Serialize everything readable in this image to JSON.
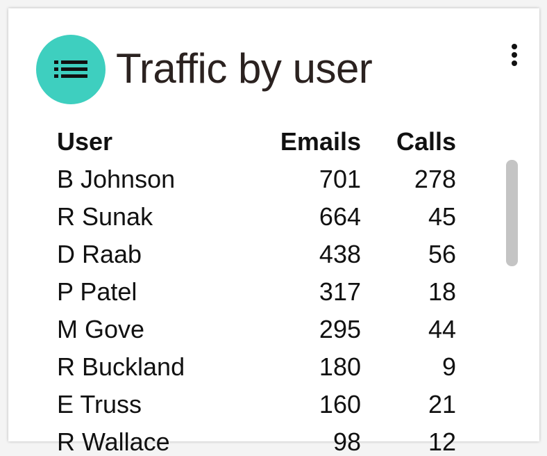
{
  "header": {
    "title": "Traffic by user"
  },
  "table": {
    "columns": [
      "User",
      "Emails",
      "Calls"
    ],
    "rows": [
      [
        "B Johnson",
        701,
        278
      ],
      [
        "R Sunak",
        664,
        45
      ],
      [
        "D Raab",
        438,
        56
      ],
      [
        "P Patel",
        317,
        18
      ],
      [
        "M Gove",
        295,
        44
      ],
      [
        "R Buckland",
        180,
        9
      ],
      [
        "E Truss",
        160,
        21
      ],
      [
        "R Wallace",
        98,
        12
      ]
    ]
  }
}
